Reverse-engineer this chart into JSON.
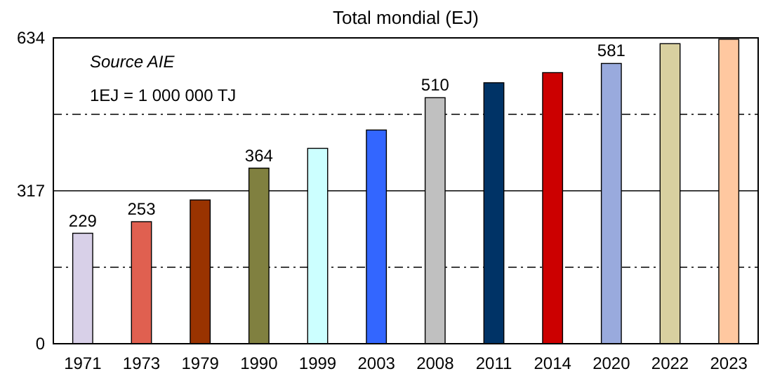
{
  "chart_data": {
    "type": "bar",
    "title": "Total mondial (EJ)",
    "categories": [
      "1971",
      "1973",
      "1979",
      "1990",
      "1999",
      "2003",
      "2008",
      "2011",
      "2014",
      "2020",
      "2022",
      "2023"
    ],
    "values": [
      229,
      253,
      298,
      364,
      405,
      443,
      510,
      541,
      562,
      581,
      622,
      631
    ],
    "colors": [
      "#d8d0e8",
      "#e06050",
      "#993300",
      "#808040",
      "#ccffff",
      "#3366ff",
      "#c0c0c0",
      "#003366",
      "#cc0000",
      "#99aadd",
      "#d8d0a0",
      "#ffc8a0"
    ],
    "value_labels": [
      "229",
      "253",
      null,
      "364",
      null,
      null,
      "510",
      null,
      null,
      "581",
      null,
      null
    ],
    "ylim": [
      0,
      634
    ],
    "yticks": [
      0,
      {
        "value": 158.5,
        "label": null
      },
      317,
      {
        "value": 475.5,
        "label": null
      },
      634
    ],
    "grid": "y",
    "ref_lines": [
      {
        "axis": "y",
        "value": 317,
        "line_style": "solid",
        "color": "#000000"
      }
    ],
    "annotations": [
      "Source AIE",
      "1EJ = 1 000 000 TJ"
    ]
  }
}
